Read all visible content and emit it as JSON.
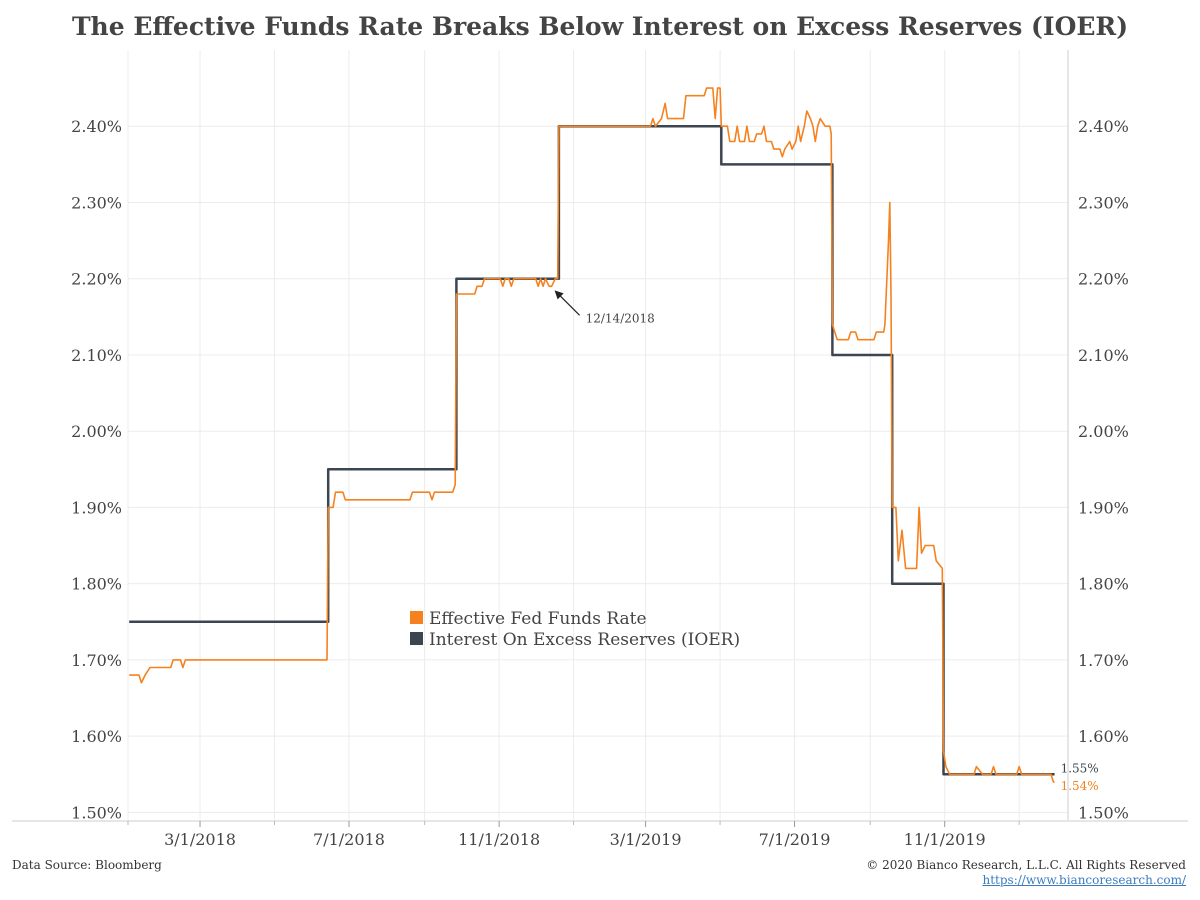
{
  "title": "The Effective Funds Rate Breaks Below Interest on Excess Reserves (IOER)",
  "footer": {
    "source": "Data Source: Bloomberg",
    "copyright": "© 2020 Bianco Research, L.L.C. All Rights Reserved",
    "url": "https://www.biancoresearch.com/"
  },
  "colors": {
    "effr": "#f5821f",
    "ioer": "#3c4650",
    "grid": "#ececec",
    "axis": "#cccccc"
  },
  "chart_data": {
    "type": "line",
    "ylim": [
      1.49,
      2.5
    ],
    "yticks": [
      1.5,
      1.6,
      1.7,
      1.8,
      1.9,
      2.0,
      2.1,
      2.2,
      2.3,
      2.4
    ],
    "ytick_labels": [
      "1.50%",
      "1.60%",
      "1.70%",
      "1.80%",
      "1.90%",
      "2.00%",
      "2.10%",
      "2.20%",
      "2.30%",
      "2.40%"
    ],
    "xlim": [
      "2018-01-01",
      "2020-02-10"
    ],
    "xticks": [
      "2018-03-01",
      "2018-07-01",
      "2018-11-01",
      "2019-03-01",
      "2019-07-01",
      "2019-11-01"
    ],
    "xtick_labels": [
      "3/1/2018",
      "7/1/2018",
      "11/1/2018",
      "3/1/2019",
      "7/1/2019",
      "11/1/2019"
    ],
    "x_minor_ticks": [
      "2018-01-01",
      "2018-05-01",
      "2018-09-01",
      "2019-01-01",
      "2019-05-01",
      "2019-09-01",
      "2020-01-01"
    ],
    "legend": {
      "position": "center",
      "entries": [
        "Effective Fed Funds Rate",
        "Interest On Excess Reserves (IOER)"
      ]
    },
    "annotations": [
      {
        "text": "12/14/2018",
        "date": "2018-12-14",
        "value": 2.19
      }
    ],
    "end_labels": {
      "ioer": "1.55%",
      "effr": "1.54%"
    },
    "series": [
      {
        "name": "Interest On Excess Reserves (IOER)",
        "key": "ioer",
        "step": true,
        "points": [
          [
            "2018-01-02",
            1.75
          ],
          [
            "2018-06-14",
            1.95
          ],
          [
            "2018-09-27",
            2.2
          ],
          [
            "2018-12-20",
            2.4
          ],
          [
            "2019-05-02",
            2.35
          ],
          [
            "2019-08-01",
            2.1
          ],
          [
            "2019-09-19",
            1.8
          ],
          [
            "2019-10-31",
            1.55
          ],
          [
            "2020-01-30",
            1.55
          ]
        ]
      },
      {
        "name": "Effective Fed Funds Rate",
        "key": "effr",
        "step": false,
        "points": [
          [
            "2018-01-02",
            1.68
          ],
          [
            "2018-01-10",
            1.68
          ],
          [
            "2018-01-12",
            1.67
          ],
          [
            "2018-01-15",
            1.68
          ],
          [
            "2018-01-19",
            1.69
          ],
          [
            "2018-02-05",
            1.69
          ],
          [
            "2018-02-07",
            1.7
          ],
          [
            "2018-02-13",
            1.7
          ],
          [
            "2018-02-15",
            1.69
          ],
          [
            "2018-02-17",
            1.7
          ],
          [
            "2018-06-13",
            1.7
          ],
          [
            "2018-06-14",
            1.9
          ],
          [
            "2018-06-18",
            1.9
          ],
          [
            "2018-06-20",
            1.92
          ],
          [
            "2018-06-26",
            1.92
          ],
          [
            "2018-06-28",
            1.91
          ],
          [
            "2018-08-20",
            1.91
          ],
          [
            "2018-08-22",
            1.92
          ],
          [
            "2018-09-05",
            1.92
          ],
          [
            "2018-09-07",
            1.91
          ],
          [
            "2018-09-09",
            1.92
          ],
          [
            "2018-09-24",
            1.92
          ],
          [
            "2018-09-26",
            1.93
          ],
          [
            "2018-09-27",
            2.18
          ],
          [
            "2018-10-12",
            2.18
          ],
          [
            "2018-10-14",
            2.19
          ],
          [
            "2018-10-18",
            2.19
          ],
          [
            "2018-10-20",
            2.2
          ],
          [
            "2018-11-02",
            2.2
          ],
          [
            "2018-11-04",
            2.19
          ],
          [
            "2018-11-06",
            2.2
          ],
          [
            "2018-11-09",
            2.2
          ],
          [
            "2018-11-11",
            2.19
          ],
          [
            "2018-11-13",
            2.2
          ],
          [
            "2018-12-01",
            2.2
          ],
          [
            "2018-12-03",
            2.19
          ],
          [
            "2018-12-05",
            2.2
          ],
          [
            "2018-12-07",
            2.19
          ],
          [
            "2018-12-09",
            2.2
          ],
          [
            "2018-12-12",
            2.19
          ],
          [
            "2018-12-14",
            2.19
          ],
          [
            "2018-12-17",
            2.2
          ],
          [
            "2018-12-19",
            2.2
          ],
          [
            "2018-12-20",
            2.4
          ],
          [
            "2019-03-05",
            2.4
          ],
          [
            "2019-03-07",
            2.41
          ],
          [
            "2019-03-09",
            2.4
          ],
          [
            "2019-03-14",
            2.41
          ],
          [
            "2019-03-17",
            2.43
          ],
          [
            "2019-03-19",
            2.41
          ],
          [
            "2019-04-01",
            2.41
          ],
          [
            "2019-04-03",
            2.44
          ],
          [
            "2019-04-18",
            2.44
          ],
          [
            "2019-04-20",
            2.45
          ],
          [
            "2019-04-25",
            2.45
          ],
          [
            "2019-04-27",
            2.41
          ],
          [
            "2019-04-29",
            2.45
          ],
          [
            "2019-05-01",
            2.45
          ],
          [
            "2019-05-02",
            2.4
          ],
          [
            "2019-05-07",
            2.4
          ],
          [
            "2019-05-09",
            2.38
          ],
          [
            "2019-05-13",
            2.38
          ],
          [
            "2019-05-15",
            2.4
          ],
          [
            "2019-05-17",
            2.38
          ],
          [
            "2019-05-21",
            2.38
          ],
          [
            "2019-05-23",
            2.4
          ],
          [
            "2019-05-25",
            2.38
          ],
          [
            "2019-05-29",
            2.38
          ],
          [
            "2019-05-31",
            2.39
          ],
          [
            "2019-06-04",
            2.39
          ],
          [
            "2019-06-06",
            2.4
          ],
          [
            "2019-06-08",
            2.38
          ],
          [
            "2019-06-12",
            2.38
          ],
          [
            "2019-06-14",
            2.37
          ],
          [
            "2019-06-19",
            2.37
          ],
          [
            "2019-06-21",
            2.36
          ],
          [
            "2019-06-23",
            2.37
          ],
          [
            "2019-06-27",
            2.38
          ],
          [
            "2019-06-29",
            2.37
          ],
          [
            "2019-07-02",
            2.38
          ],
          [
            "2019-07-04",
            2.4
          ],
          [
            "2019-07-06",
            2.38
          ],
          [
            "2019-07-09",
            2.4
          ],
          [
            "2019-07-11",
            2.42
          ],
          [
            "2019-07-14",
            2.41
          ],
          [
            "2019-07-16",
            2.4
          ],
          [
            "2019-07-18",
            2.38
          ],
          [
            "2019-07-20",
            2.4
          ],
          [
            "2019-07-22",
            2.41
          ],
          [
            "2019-07-26",
            2.4
          ],
          [
            "2019-07-30",
            2.4
          ],
          [
            "2019-07-31",
            2.39
          ],
          [
            "2019-08-01",
            2.14
          ],
          [
            "2019-08-03",
            2.13
          ],
          [
            "2019-08-05",
            2.12
          ],
          [
            "2019-08-14",
            2.12
          ],
          [
            "2019-08-16",
            2.13
          ],
          [
            "2019-08-20",
            2.13
          ],
          [
            "2019-08-22",
            2.12
          ],
          [
            "2019-09-04",
            2.12
          ],
          [
            "2019-09-06",
            2.13
          ],
          [
            "2019-09-12",
            2.13
          ],
          [
            "2019-09-13",
            2.14
          ],
          [
            "2019-09-16",
            2.25
          ],
          [
            "2019-09-17",
            2.3
          ],
          [
            "2019-09-18",
            2.18
          ],
          [
            "2019-09-19",
            1.9
          ],
          [
            "2019-09-22",
            1.9
          ],
          [
            "2019-09-24",
            1.83
          ],
          [
            "2019-09-27",
            1.87
          ],
          [
            "2019-09-30",
            1.82
          ],
          [
            "2019-10-09",
            1.82
          ],
          [
            "2019-10-11",
            1.9
          ],
          [
            "2019-10-13",
            1.84
          ],
          [
            "2019-10-16",
            1.85
          ],
          [
            "2019-10-23",
            1.85
          ],
          [
            "2019-10-25",
            1.83
          ],
          [
            "2019-10-30",
            1.82
          ],
          [
            "2019-10-31",
            1.58
          ],
          [
            "2019-11-02",
            1.56
          ],
          [
            "2019-11-05",
            1.55
          ],
          [
            "2019-11-25",
            1.55
          ],
          [
            "2019-11-27",
            1.56
          ],
          [
            "2019-12-02",
            1.55
          ],
          [
            "2019-12-09",
            1.55
          ],
          [
            "2019-12-11",
            1.56
          ],
          [
            "2019-12-13",
            1.55
          ],
          [
            "2019-12-30",
            1.55
          ],
          [
            "2020-01-01",
            1.56
          ],
          [
            "2020-01-03",
            1.55
          ],
          [
            "2020-01-27",
            1.55
          ],
          [
            "2020-01-29",
            1.54
          ],
          [
            "2020-01-30",
            1.54
          ]
        ]
      }
    ]
  }
}
